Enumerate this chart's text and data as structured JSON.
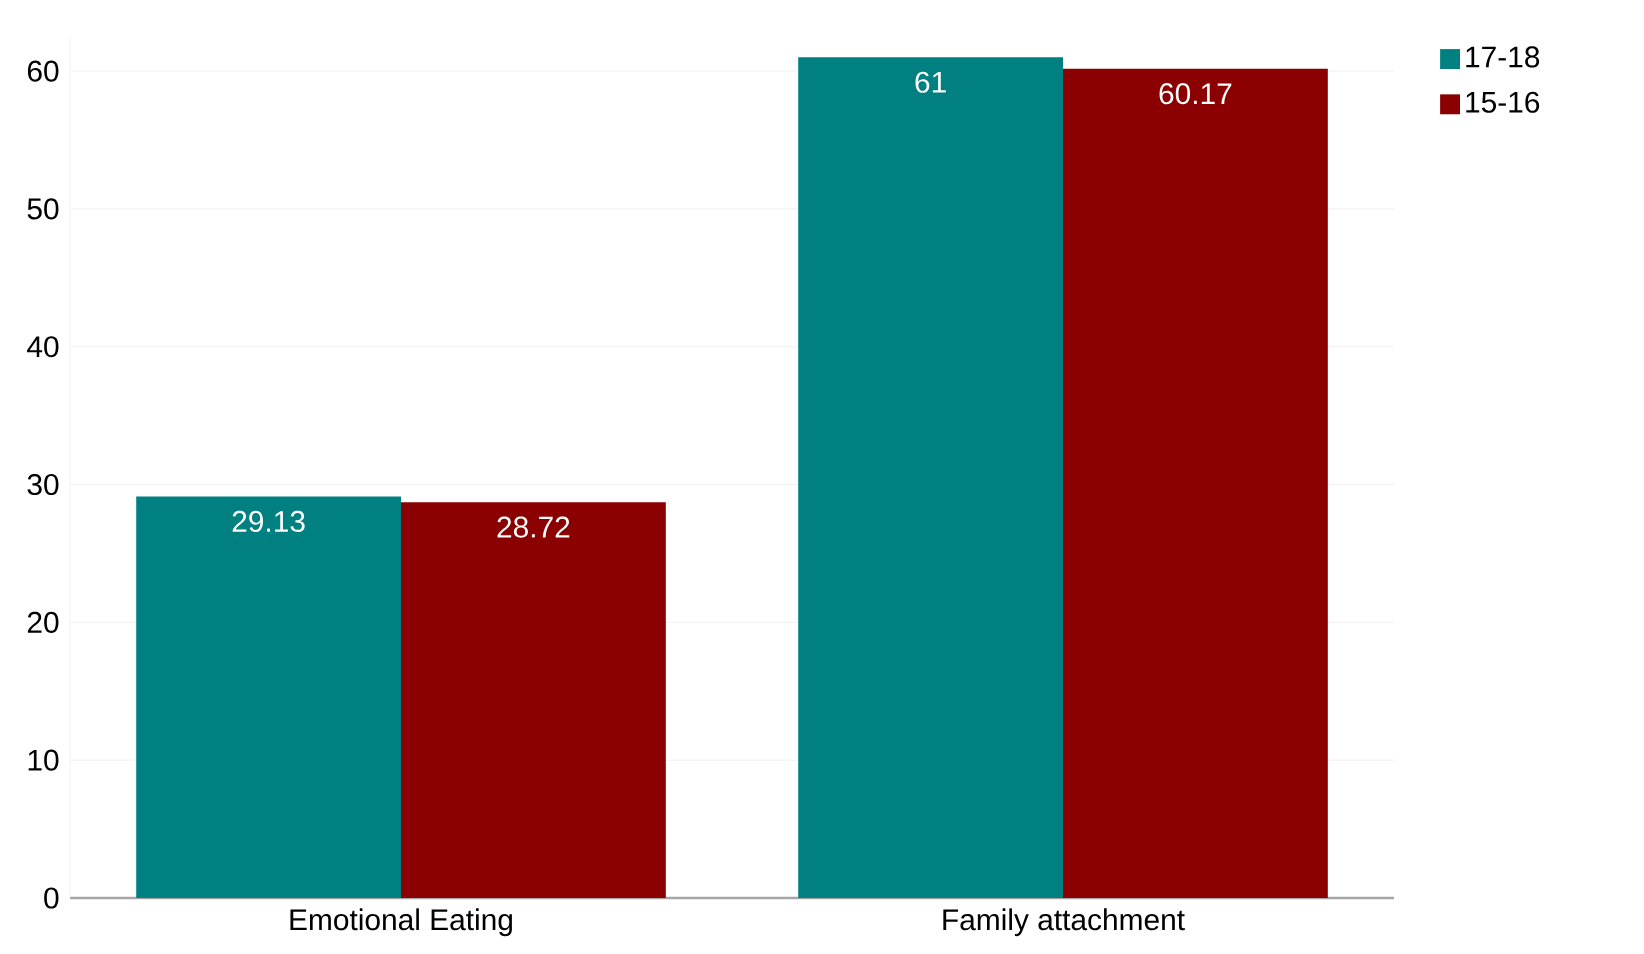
{
  "chart_data": {
    "type": "bar",
    "categories": [
      "Emotional Eating",
      "Family attachment"
    ],
    "series": [
      {
        "name": "17-18",
        "color": "#008080",
        "values": [
          29.13,
          61
        ]
      },
      {
        "name": "15-16",
        "color": "#8b0000",
        "values": [
          28.72,
          60.17
        ]
      }
    ],
    "ylim": [
      0,
      62.4
    ],
    "yticks": [
      0,
      10,
      20,
      30,
      40,
      50,
      60
    ],
    "grid": "y",
    "legend": "top right",
    "data_labels": true
  }
}
